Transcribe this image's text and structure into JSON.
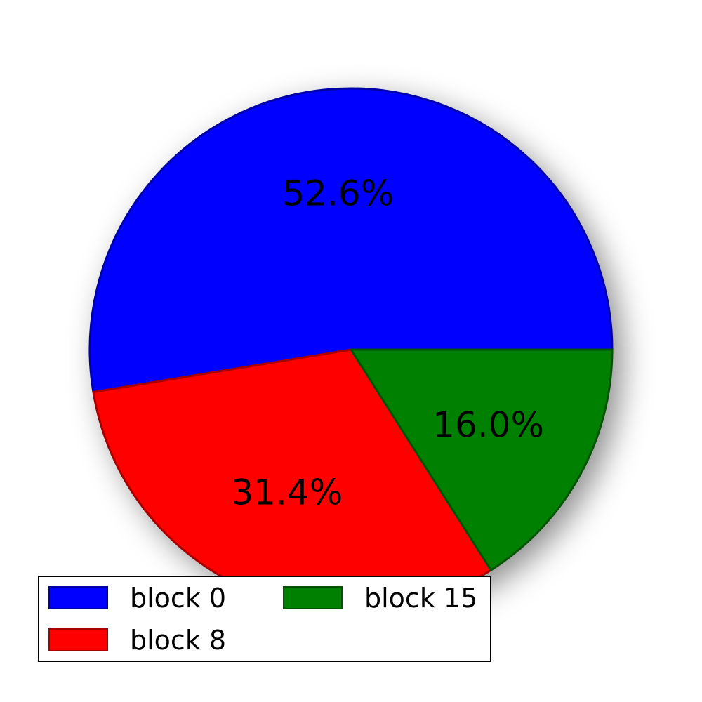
{
  "chart_data": {
    "type": "pie",
    "title": "",
    "start_angle_deg": 0,
    "direction": "counterclockwise",
    "shadow": true,
    "legend_placement": "bottom-left",
    "legend_columns": 2,
    "slices": [
      {
        "label": "block 0",
        "value": 52.6,
        "pct_label": "52.6%",
        "color": "#0000ff",
        "edge": "#0000a8"
      },
      {
        "label": "block 8",
        "value": 31.4,
        "pct_label": "31.4%",
        "color": "#ff0000",
        "edge": "#a80000"
      },
      {
        "label": "block 15",
        "value": 16.0,
        "pct_label": "16.0%",
        "color": "#008000",
        "edge": "#005400"
      }
    ]
  }
}
